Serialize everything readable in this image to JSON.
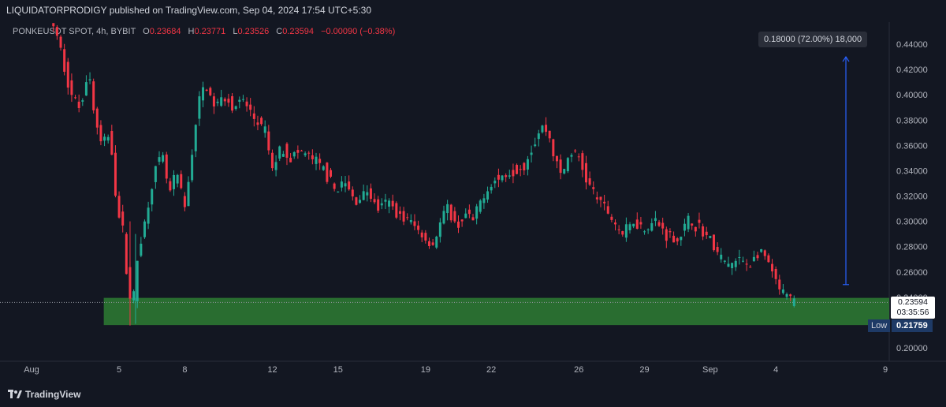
{
  "header": {
    "publisher_line": "LIQUIDATORPRODIGY published on TradingView.com, Sep 04, 2024 17:54 UTC+5:30"
  },
  "legend": {
    "symbol": "PONKEUSDT SPOT, 4h, BYBIT",
    "open_label": "O",
    "open": "0.23684",
    "high_label": "H",
    "high": "0.23771",
    "low_label": "L",
    "low": "0.23526",
    "close_label": "C",
    "close": "0.23594",
    "change": "−0.00090 (−0.38%)"
  },
  "measure": {
    "label": "0.18000 (72.00%) 18,000"
  },
  "price_badge": {
    "price": "0.23594",
    "countdown": "03:35:56"
  },
  "low_marker": {
    "label": "Low",
    "value": "0.21759"
  },
  "branding": {
    "name": "TradingView"
  },
  "colors": {
    "up": "#22ab94",
    "down": "#f23645",
    "zone": "#2e7d32",
    "measure": "#2962ff",
    "bg": "#131722"
  },
  "chart_data": {
    "type": "candlestick",
    "y_axis": {
      "range": [
        0.19,
        0.45
      ],
      "ticks": [
        "0.44000",
        "0.42000",
        "0.40000",
        "0.38000",
        "0.36000",
        "0.34000",
        "0.32000",
        "0.30000",
        "0.28000",
        "0.26000",
        "0.24000",
        "0.22000",
        "0.20000"
      ],
      "tick_values": [
        0.44,
        0.42,
        0.4,
        0.38,
        0.36,
        0.34,
        0.32,
        0.3,
        0.28,
        0.26,
        0.24,
        0.22,
        0.2
      ]
    },
    "x_axis": {
      "range_days": [
        0,
        40
      ],
      "ticks": [
        {
          "label": "Aug",
          "day": 0
        },
        {
          "label": "5",
          "day": 4
        },
        {
          "label": "8",
          "day": 7
        },
        {
          "label": "12",
          "day": 11
        },
        {
          "label": "15",
          "day": 14
        },
        {
          "label": "19",
          "day": 18
        },
        {
          "label": "22",
          "day": 21
        },
        {
          "label": "26",
          "day": 25
        },
        {
          "label": "29",
          "day": 28
        },
        {
          "label": "Sep",
          "day": 31
        },
        {
          "label": "4",
          "day": 34
        },
        {
          "label": "9",
          "day": 39
        }
      ]
    },
    "path_points": [
      [
        1.0,
        0.455
      ],
      [
        1.4,
        0.43
      ],
      [
        1.8,
        0.4
      ],
      [
        2.2,
        0.39
      ],
      [
        2.6,
        0.42
      ],
      [
        2.9,
        0.38
      ],
      [
        3.2,
        0.36
      ],
      [
        3.6,
        0.37
      ],
      [
        3.9,
        0.31
      ],
      [
        4.2,
        0.29
      ],
      [
        4.4,
        0.25
      ],
      [
        4.6,
        0.23
      ],
      [
        4.9,
        0.28
      ],
      [
        5.2,
        0.3
      ],
      [
        5.6,
        0.34
      ],
      [
        6.0,
        0.35
      ],
      [
        6.3,
        0.32
      ],
      [
        6.6,
        0.34
      ],
      [
        7.0,
        0.31
      ],
      [
        7.3,
        0.35
      ],
      [
        7.6,
        0.39
      ],
      [
        7.9,
        0.41
      ],
      [
        8.1,
        0.4
      ],
      [
        8.4,
        0.39
      ],
      [
        8.8,
        0.4
      ],
      [
        9.2,
        0.39
      ],
      [
        9.7,
        0.395
      ],
      [
        10.2,
        0.38
      ],
      [
        10.7,
        0.37
      ],
      [
        11.0,
        0.34
      ],
      [
        11.4,
        0.36
      ],
      [
        11.8,
        0.35
      ],
      [
        12.3,
        0.355
      ],
      [
        12.8,
        0.35
      ],
      [
        13.4,
        0.34
      ],
      [
        13.8,
        0.325
      ],
      [
        14.3,
        0.33
      ],
      [
        14.8,
        0.315
      ],
      [
        15.3,
        0.325
      ],
      [
        15.8,
        0.31
      ],
      [
        16.3,
        0.315
      ],
      [
        16.8,
        0.305
      ],
      [
        17.3,
        0.3
      ],
      [
        17.8,
        0.29
      ],
      [
        18.3,
        0.28
      ],
      [
        18.7,
        0.3
      ],
      [
        19.0,
        0.31
      ],
      [
        19.4,
        0.295
      ],
      [
        19.8,
        0.305
      ],
      [
        20.2,
        0.3
      ],
      [
        20.6,
        0.32
      ],
      [
        21.0,
        0.33
      ],
      [
        21.5,
        0.335
      ],
      [
        22.0,
        0.34
      ],
      [
        22.5,
        0.345
      ],
      [
        22.9,
        0.36
      ],
      [
        23.3,
        0.375
      ],
      [
        23.6,
        0.37
      ],
      [
        23.9,
        0.35
      ],
      [
        24.2,
        0.335
      ],
      [
        24.6,
        0.355
      ],
      [
        25.0,
        0.35
      ],
      [
        25.4,
        0.33
      ],
      [
        25.8,
        0.32
      ],
      [
        26.2,
        0.31
      ],
      [
        26.6,
        0.3
      ],
      [
        27.0,
        0.29
      ],
      [
        27.5,
        0.3
      ],
      [
        28.0,
        0.295
      ],
      [
        28.5,
        0.3
      ],
      [
        29.0,
        0.29
      ],
      [
        29.5,
        0.285
      ],
      [
        30.0,
        0.3
      ],
      [
        30.5,
        0.295
      ],
      [
        31.0,
        0.285
      ],
      [
        31.5,
        0.27
      ],
      [
        31.9,
        0.265
      ],
      [
        32.4,
        0.27
      ],
      [
        32.8,
        0.265
      ],
      [
        33.2,
        0.275
      ],
      [
        33.6,
        0.27
      ],
      [
        33.9,
        0.255
      ],
      [
        34.2,
        0.245
      ],
      [
        34.5,
        0.24
      ],
      [
        34.9,
        0.2359
      ]
    ],
    "support_zone": {
      "from": 0.218,
      "to": 0.2395,
      "start_day": 3.3
    },
    "measure_arrow": {
      "day": 37.2,
      "from": 0.25,
      "to": 0.43
    },
    "last_price": 0.23594
  }
}
